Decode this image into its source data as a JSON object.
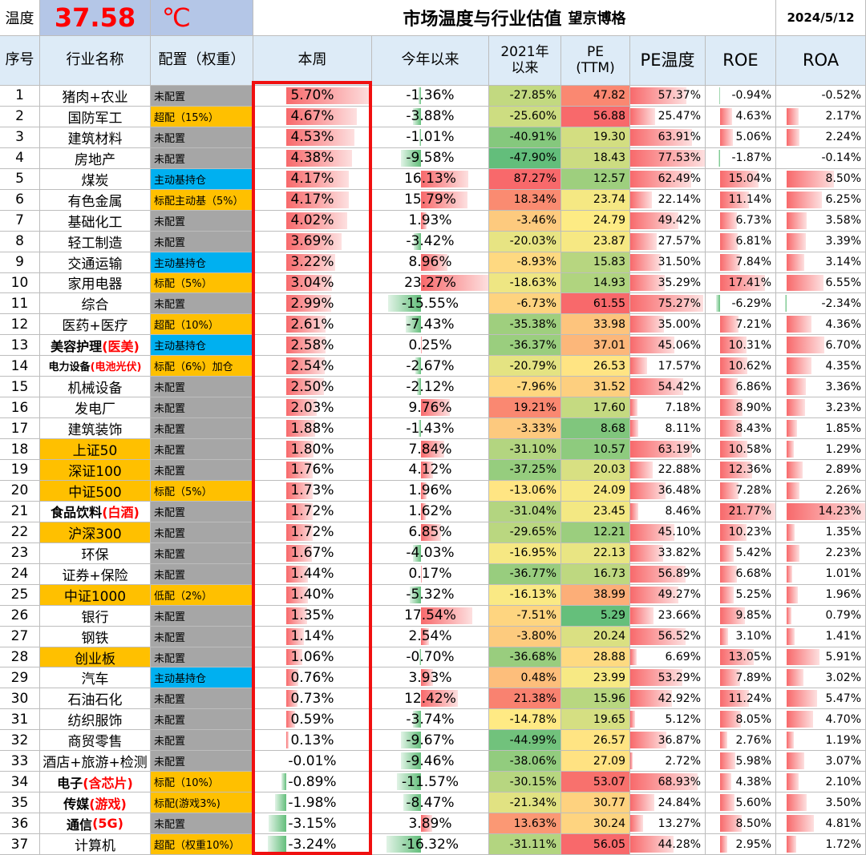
{
  "header": {
    "temp_label": "温度",
    "temp_value": "37.58",
    "temp_unit": "℃",
    "title": "市场温度与行业估值",
    "author": "望京博格",
    "date": "2024/5/12"
  },
  "columns": [
    "序号",
    "行业名称",
    "配置（权重）",
    "本周",
    "今年以来",
    "2021年\n以来",
    "PE\n(TTM)",
    "PE温度",
    "ROE",
    "ROA"
  ],
  "colors": {
    "temp_bg": "#b4c6e7",
    "temp_text": "#ff0000",
    "gray": "#a6a6a6",
    "orange": "#ffc000",
    "blue": "#00b0f0",
    "red_text": "#ff0000",
    "frame": "#f01010"
  },
  "chart_data": {
    "type": "table",
    "title": "市场温度与行业估值",
    "rows": [
      {
        "no": "1",
        "name": "猪肉+农业",
        "name_hl": "",
        "name_bg": "",
        "config": "未配置",
        "config_bg": "gray",
        "week": "5.70%",
        "ytd": "-1.36%",
        "since2021": "-27.85%",
        "pe": "47.82",
        "pe_temp": "57.37%",
        "roe": "-0.94%",
        "roa": "-0.52%"
      },
      {
        "no": "2",
        "name": "国防军工",
        "name_hl": "",
        "name_bg": "",
        "config": "超配（15%）",
        "config_bg": "orange",
        "week": "4.67%",
        "ytd": "-3.88%",
        "since2021": "-25.60%",
        "pe": "56.88",
        "pe_temp": "25.47%",
        "roe": "4.63%",
        "roa": "2.17%"
      },
      {
        "no": "3",
        "name": "建筑材料",
        "name_hl": "",
        "name_bg": "",
        "config": "未配置",
        "config_bg": "gray",
        "week": "4.53%",
        "ytd": "-1.01%",
        "since2021": "-40.91%",
        "pe": "19.30",
        "pe_temp": "63.91%",
        "roe": "5.06%",
        "roa": "2.24%"
      },
      {
        "no": "4",
        "name": "房地产",
        "name_hl": "",
        "name_bg": "",
        "config": "未配置",
        "config_bg": "gray",
        "week": "4.38%",
        "ytd": "-9.58%",
        "since2021": "-47.90%",
        "pe": "18.43",
        "pe_temp": "77.53%",
        "roe": "-1.87%",
        "roa": "-0.14%"
      },
      {
        "no": "5",
        "name": "煤炭",
        "name_hl": "",
        "name_bg": "",
        "config": "主动基持仓",
        "config_bg": "blue",
        "week": "4.17%",
        "ytd": "16.13%",
        "since2021": "87.27%",
        "pe": "12.57",
        "pe_temp": "62.49%",
        "roe": "15.04%",
        "roa": "8.50%"
      },
      {
        "no": "6",
        "name": "有色金属",
        "name_hl": "",
        "name_bg": "",
        "config": "标配主动基（5%）",
        "config_bg": "orange",
        "week": "4.17%",
        "ytd": "15.79%",
        "since2021": "18.34%",
        "pe": "23.74",
        "pe_temp": "22.14%",
        "roe": "11.14%",
        "roa": "6.25%"
      },
      {
        "no": "7",
        "name": "基础化工",
        "name_hl": "",
        "name_bg": "",
        "config": "未配置",
        "config_bg": "gray",
        "week": "4.02%",
        "ytd": "1.93%",
        "since2021": "-3.46%",
        "pe": "24.79",
        "pe_temp": "49.42%",
        "roe": "6.73%",
        "roa": "3.58%"
      },
      {
        "no": "8",
        "name": "轻工制造",
        "name_hl": "",
        "name_bg": "",
        "config": "未配置",
        "config_bg": "gray",
        "week": "3.69%",
        "ytd": "-3.42%",
        "since2021": "-20.03%",
        "pe": "23.87",
        "pe_temp": "27.57%",
        "roe": "6.81%",
        "roa": "3.39%"
      },
      {
        "no": "9",
        "name": "交通运输",
        "name_hl": "",
        "name_bg": "",
        "config": "主动基持仓",
        "config_bg": "blue",
        "week": "3.22%",
        "ytd": "8.96%",
        "since2021": "-8.93%",
        "pe": "15.83",
        "pe_temp": "31.50%",
        "roe": "7.84%",
        "roa": "3.14%"
      },
      {
        "no": "10",
        "name": "家用电器",
        "name_hl": "",
        "name_bg": "",
        "config": "标配（5%）",
        "config_bg": "orange",
        "week": "3.04%",
        "ytd": "23.27%",
        "since2021": "-18.63%",
        "pe": "14.93",
        "pe_temp": "35.29%",
        "roe": "17.41%",
        "roa": "6.55%"
      },
      {
        "no": "11",
        "name": "综合",
        "name_hl": "",
        "name_bg": "",
        "config": "未配置",
        "config_bg": "gray",
        "week": "2.99%",
        "ytd": "-15.55%",
        "since2021": "-6.73%",
        "pe": "61.55",
        "pe_temp": "75.27%",
        "roe": "-6.29%",
        "roa": "-2.34%"
      },
      {
        "no": "12",
        "name": "医药+医疗",
        "name_hl": "",
        "name_bg": "",
        "config": "超配（10%）",
        "config_bg": "orange",
        "week": "2.61%",
        "ytd": "-7.43%",
        "since2021": "-35.38%",
        "pe": "33.98",
        "pe_temp": "35.00%",
        "roe": "7.21%",
        "roa": "4.36%"
      },
      {
        "no": "13",
        "name": "美容护理",
        "name_hl": "(医美)",
        "name_bg": "",
        "config": "主动基持仓",
        "config_bg": "blue",
        "week": "2.58%",
        "ytd": "0.25%",
        "since2021": "-36.37%",
        "pe": "37.01",
        "pe_temp": "45.06%",
        "roe": "10.31%",
        "roa": "6.70%"
      },
      {
        "no": "14",
        "name": "电力设备",
        "name_hl": "(电池光伏)",
        "name_bg": "",
        "config": "标配（6%）加仓",
        "config_bg": "orange",
        "week": "2.54%",
        "ytd": "-2.67%",
        "since2021": "-20.79%",
        "pe": "26.53",
        "pe_temp": "17.57%",
        "roe": "10.62%",
        "roa": "4.35%"
      },
      {
        "no": "15",
        "name": "机械设备",
        "name_hl": "",
        "name_bg": "",
        "config": "未配置",
        "config_bg": "gray",
        "week": "2.50%",
        "ytd": "-2.12%",
        "since2021": "-7.96%",
        "pe": "31.52",
        "pe_temp": "54.42%",
        "roe": "6.86%",
        "roa": "3.36%"
      },
      {
        "no": "16",
        "name": "发电厂",
        "name_hl": "",
        "name_bg": "",
        "config": "未配置",
        "config_bg": "gray",
        "week": "2.03%",
        "ytd": "9.76%",
        "since2021": "19.21%",
        "pe": "17.60",
        "pe_temp": "7.18%",
        "roe": "8.90%",
        "roa": "3.23%"
      },
      {
        "no": "17",
        "name": "建筑装饰",
        "name_hl": "",
        "name_bg": "",
        "config": "未配置",
        "config_bg": "gray",
        "week": "1.88%",
        "ytd": "-1.43%",
        "since2021": "-3.33%",
        "pe": "8.68",
        "pe_temp": "8.11%",
        "roe": "8.43%",
        "roa": "1.85%"
      },
      {
        "no": "18",
        "name": "上证50",
        "name_hl": "",
        "name_bg": "orange",
        "config": "未配置",
        "config_bg": "gray",
        "week": "1.80%",
        "ytd": "7.84%",
        "since2021": "-31.10%",
        "pe": "10.57",
        "pe_temp": "63.19%",
        "roe": "10.58%",
        "roa": "1.29%"
      },
      {
        "no": "19",
        "name": "深证100",
        "name_hl": "",
        "name_bg": "orange",
        "config": "未配置",
        "config_bg": "gray",
        "week": "1.76%",
        "ytd": "4.12%",
        "since2021": "-37.25%",
        "pe": "20.03",
        "pe_temp": "22.88%",
        "roe": "12.36%",
        "roa": "2.89%"
      },
      {
        "no": "20",
        "name": "中证500",
        "name_hl": "",
        "name_bg": "orange",
        "config": "标配（5%）",
        "config_bg": "orange",
        "week": "1.73%",
        "ytd": "1.96%",
        "since2021": "-13.06%",
        "pe": "24.09",
        "pe_temp": "36.48%",
        "roe": "7.28%",
        "roa": "2.26%"
      },
      {
        "no": "21",
        "name": "食品饮料",
        "name_hl": "(白酒)",
        "name_bg": "",
        "config": "未配置",
        "config_bg": "gray",
        "week": "1.72%",
        "ytd": "1.62%",
        "since2021": "-31.04%",
        "pe": "23.45",
        "pe_temp": "8.46%",
        "roe": "21.77%",
        "roa": "14.23%"
      },
      {
        "no": "22",
        "name": "沪深300",
        "name_hl": "",
        "name_bg": "orange",
        "config": "未配置",
        "config_bg": "gray",
        "week": "1.72%",
        "ytd": "6.85%",
        "since2021": "-29.65%",
        "pe": "12.21",
        "pe_temp": "45.10%",
        "roe": "10.23%",
        "roa": "1.35%"
      },
      {
        "no": "23",
        "name": "环保",
        "name_hl": "",
        "name_bg": "",
        "config": "未配置",
        "config_bg": "gray",
        "week": "1.67%",
        "ytd": "-4.03%",
        "since2021": "-16.95%",
        "pe": "22.13",
        "pe_temp": "33.82%",
        "roe": "5.42%",
        "roa": "2.23%"
      },
      {
        "no": "24",
        "name": "证券+保险",
        "name_hl": "",
        "name_bg": "",
        "config": "未配置",
        "config_bg": "gray",
        "week": "1.44%",
        "ytd": "0.17%",
        "since2021": "-36.77%",
        "pe": "16.73",
        "pe_temp": "56.89%",
        "roe": "6.68%",
        "roa": "1.01%"
      },
      {
        "no": "25",
        "name": "中证1000",
        "name_hl": "",
        "name_bg": "orange",
        "config": "低配（2%）",
        "config_bg": "orange",
        "week": "1.40%",
        "ytd": "-5.32%",
        "since2021": "-16.13%",
        "pe": "38.99",
        "pe_temp": "49.27%",
        "roe": "5.25%",
        "roa": "1.96%"
      },
      {
        "no": "26",
        "name": "银行",
        "name_hl": "",
        "name_bg": "",
        "config": "未配置",
        "config_bg": "gray",
        "week": "1.35%",
        "ytd": "17.54%",
        "since2021": "-7.51%",
        "pe": "5.29",
        "pe_temp": "23.66%",
        "roe": "9.85%",
        "roa": "0.79%"
      },
      {
        "no": "27",
        "name": "钢铁",
        "name_hl": "",
        "name_bg": "",
        "config": "未配置",
        "config_bg": "gray",
        "week": "1.14%",
        "ytd": "2.54%",
        "since2021": "-3.80%",
        "pe": "20.24",
        "pe_temp": "56.52%",
        "roe": "3.10%",
        "roa": "1.41%"
      },
      {
        "no": "28",
        "name": "创业板",
        "name_hl": "",
        "name_bg": "orange",
        "config": "未配置",
        "config_bg": "gray",
        "week": "1.06%",
        "ytd": "-0.70%",
        "since2021": "-36.68%",
        "pe": "28.88",
        "pe_temp": "6.69%",
        "roe": "13.05%",
        "roa": "5.91%"
      },
      {
        "no": "29",
        "name": "汽车",
        "name_hl": "",
        "name_bg": "",
        "config": "主动基持仓",
        "config_bg": "blue",
        "week": "0.76%",
        "ytd": "3.93%",
        "since2021": "0.48%",
        "pe": "23.99",
        "pe_temp": "53.29%",
        "roe": "7.89%",
        "roa": "3.02%"
      },
      {
        "no": "30",
        "name": "石油石化",
        "name_hl": "",
        "name_bg": "",
        "config": "未配置",
        "config_bg": "gray",
        "week": "0.73%",
        "ytd": "12.42%",
        "since2021": "21.38%",
        "pe": "15.96",
        "pe_temp": "42.92%",
        "roe": "11.24%",
        "roa": "5.47%"
      },
      {
        "no": "31",
        "name": "纺织服饰",
        "name_hl": "",
        "name_bg": "",
        "config": "未配置",
        "config_bg": "gray",
        "week": "0.59%",
        "ytd": "-3.74%",
        "since2021": "-14.78%",
        "pe": "19.65",
        "pe_temp": "5.12%",
        "roe": "8.05%",
        "roa": "4.70%"
      },
      {
        "no": "32",
        "name": "商贸零售",
        "name_hl": "",
        "name_bg": "",
        "config": "未配置",
        "config_bg": "gray",
        "week": "0.13%",
        "ytd": "-9.67%",
        "since2021": "-44.99%",
        "pe": "26.57",
        "pe_temp": "36.87%",
        "roe": "2.76%",
        "roa": "1.19%"
      },
      {
        "no": "33",
        "name": "酒店+旅游+检测",
        "name_hl": "",
        "name_bg": "",
        "config": "未配置",
        "config_bg": "gray",
        "week": "-0.01%",
        "ytd": "-9.46%",
        "since2021": "-38.06%",
        "pe": "27.09",
        "pe_temp": "2.72%",
        "roe": "5.98%",
        "roa": "3.07%"
      },
      {
        "no": "34",
        "name": "电子",
        "name_hl": "(含芯片)",
        "name_bg": "",
        "config": "标配（10%）",
        "config_bg": "orange",
        "week": "-0.89%",
        "ytd": "-11.57%",
        "since2021": "-30.15%",
        "pe": "53.07",
        "pe_temp": "68.93%",
        "roe": "4.38%",
        "roa": "2.10%"
      },
      {
        "no": "35",
        "name": "传媒",
        "name_hl": "(游戏)",
        "name_bg": "",
        "config": "标配(游戏3%)",
        "config_bg": "orange",
        "week": "-1.98%",
        "ytd": "-8.47%",
        "since2021": "-21.34%",
        "pe": "30.77",
        "pe_temp": "24.84%",
        "roe": "5.60%",
        "roa": "3.50%"
      },
      {
        "no": "36",
        "name": "通信",
        "name_hl": "(5G)",
        "name_bg": "",
        "config": "未配置",
        "config_bg": "gray",
        "week": "-3.15%",
        "ytd": "3.89%",
        "since2021": "13.63%",
        "pe": "30.24",
        "pe_temp": "13.27%",
        "roe": "8.50%",
        "roa": "4.81%"
      },
      {
        "no": "37",
        "name": "计算机",
        "name_hl": "",
        "name_bg": "",
        "config": "超配（权重10%）",
        "config_bg": "orange",
        "week": "-3.24%",
        "ytd": "-16.32%",
        "since2021": "-31.11%",
        "pe": "56.05",
        "pe_temp": "44.28%",
        "roe": "2.95%",
        "roa": "1.72%"
      }
    ]
  }
}
